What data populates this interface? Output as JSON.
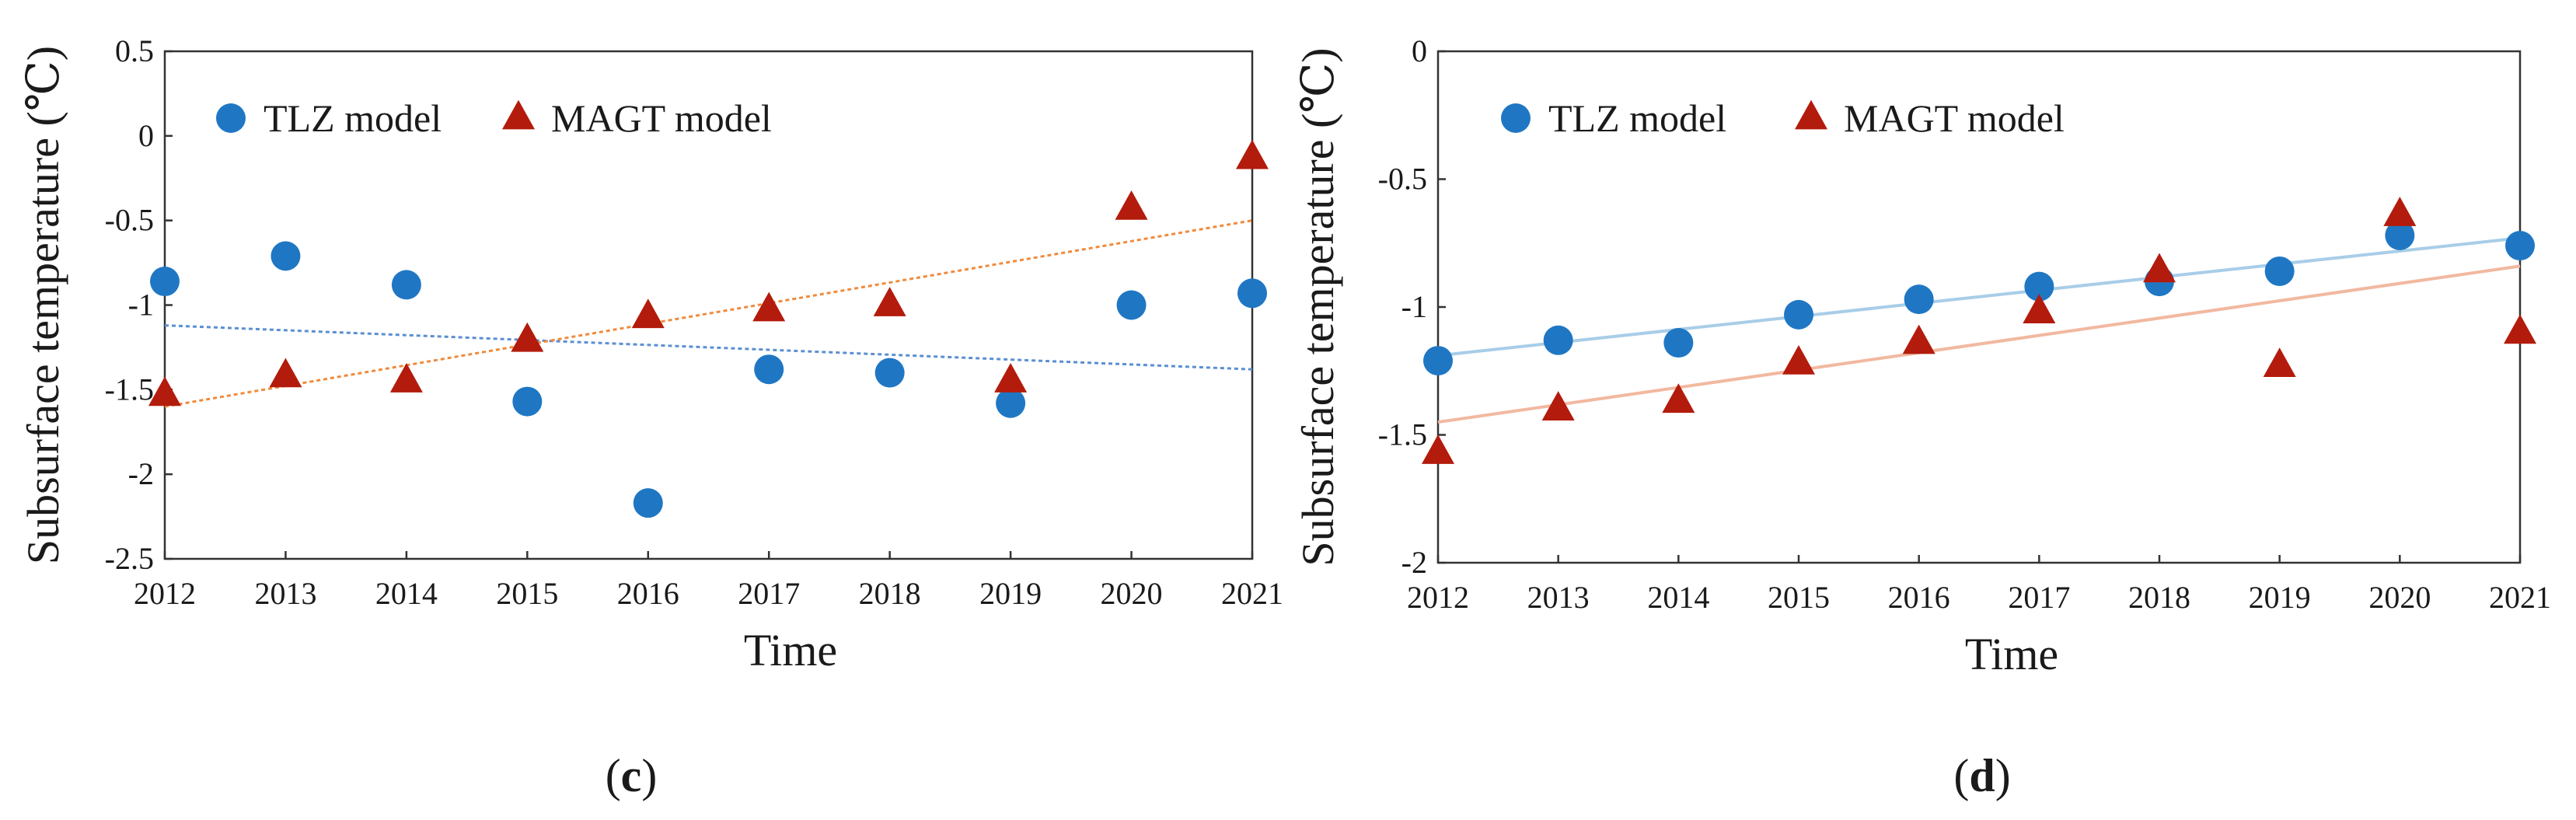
{
  "figure": {
    "panels": [
      "c",
      "d"
    ]
  },
  "colors": {
    "tlz_marker": "#1f77c4",
    "magt_marker": "#b31b0c",
    "tlz_trend_c": "#5b8fd0",
    "magt_trend_c": "#f08a3c",
    "tlz_trend_d": "#a8cde8",
    "magt_trend_d": "#f2b8a0",
    "axis": "#333333"
  },
  "chart_data": [
    {
      "id": "c",
      "type": "scatter",
      "panel_label": "c",
      "xlabel": "Time",
      "ylabel": "Subsurface temperature (℃)",
      "x": [
        2012,
        2013,
        2014,
        2015,
        2016,
        2017,
        2018,
        2019,
        2020,
        2021
      ],
      "xticks": [
        "2012",
        "2013",
        "2014",
        "2015",
        "2016",
        "2017",
        "2018",
        "2019",
        "2020",
        "2021"
      ],
      "xlim": [
        2012,
        2021
      ],
      "ylim": [
        -2.5,
        0.5
      ],
      "yticks": [
        "0.5",
        "0",
        "-0.5",
        "-1",
        "-1.5",
        "-2",
        "-2.5"
      ],
      "ytick_values": [
        0.5,
        0,
        -0.5,
        -1,
        -1.5,
        -2,
        -2.5
      ],
      "grid": false,
      "legend_position": "top-left",
      "series": [
        {
          "name": "TLZ model",
          "marker": "circle",
          "values": [
            -0.86,
            -0.71,
            -0.88,
            -1.57,
            -2.17,
            -1.38,
            -1.4,
            -1.58,
            -1.0,
            -0.93
          ],
          "trend": [
            -1.12,
            -1.38
          ]
        },
        {
          "name": "MAGT model",
          "marker": "triangle",
          "values": [
            -1.53,
            -1.42,
            -1.45,
            -1.21,
            -1.07,
            -1.03,
            -1.0,
            -1.45,
            -0.43,
            -0.13
          ],
          "trend": [
            -1.6,
            -0.5
          ]
        }
      ]
    },
    {
      "id": "d",
      "type": "scatter",
      "panel_label": "d",
      "xlabel": "Time",
      "ylabel": "Subsurface temperature (℃)",
      "x": [
        2012,
        2013,
        2014,
        2015,
        2016,
        2017,
        2018,
        2019,
        2020,
        2021
      ],
      "xticks": [
        "2012",
        "2013",
        "2014",
        "2015",
        "2016",
        "2017",
        "2018",
        "2019",
        "2020",
        "2021"
      ],
      "xlim": [
        2012,
        2021
      ],
      "ylim": [
        -2,
        0
      ],
      "yticks": [
        "0",
        "-0.5",
        "-1",
        "-1.5",
        "-2"
      ],
      "ytick_values": [
        0,
        -0.5,
        -1,
        -1.5,
        -2
      ],
      "grid": false,
      "legend_position": "top-left",
      "series": [
        {
          "name": "TLZ model",
          "marker": "circle",
          "values": [
            -1.21,
            -1.13,
            -1.14,
            -1.03,
            -0.97,
            -0.92,
            -0.9,
            -0.86,
            -0.72,
            -0.76
          ],
          "trend": [
            -1.19,
            -0.73
          ]
        },
        {
          "name": "MAGT model",
          "marker": "triangle",
          "values": [
            -1.57,
            -1.4,
            -1.37,
            -1.22,
            -1.14,
            -1.02,
            -0.86,
            -1.23,
            -0.64,
            -1.1
          ],
          "trend": [
            -1.45,
            -0.84
          ]
        }
      ]
    }
  ]
}
